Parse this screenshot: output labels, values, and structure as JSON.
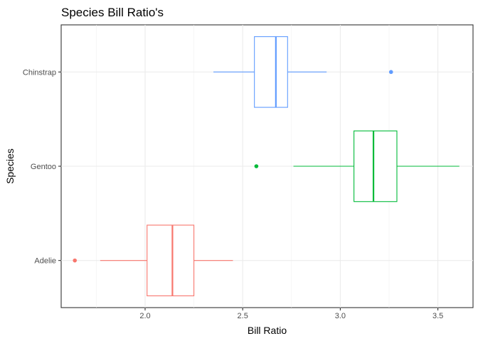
{
  "chart_data": {
    "type": "boxplot",
    "orientation": "horizontal",
    "title": "Species Bill Ratio's",
    "xlabel": "Bill Ratio",
    "ylabel": "Species",
    "xlim": [
      1.57,
      3.68
    ],
    "x_ticks": [
      2.0,
      2.5,
      3.0,
      3.5
    ],
    "x_tick_labels": [
      "2.0",
      "2.5",
      "3.0",
      "3.5"
    ],
    "categories": [
      "Adelie",
      "Gentoo",
      "Chinstrap"
    ],
    "grid": true,
    "legend": "none",
    "series": [
      {
        "name": "Adelie",
        "color": "#F8766D",
        "whisker_low": 1.77,
        "q1": 2.01,
        "median": 2.14,
        "q3": 2.25,
        "whisker_high": 2.45,
        "outliers": [
          1.64
        ]
      },
      {
        "name": "Gentoo",
        "color": "#00BA38",
        "whisker_low": 2.76,
        "q1": 3.07,
        "median": 3.17,
        "q3": 3.29,
        "whisker_high": 3.61,
        "outliers": [
          2.57
        ]
      },
      {
        "name": "Chinstrap",
        "color": "#619CFF",
        "whisker_low": 2.35,
        "q1": 2.56,
        "median": 2.67,
        "q3": 2.73,
        "whisker_high": 2.93,
        "outliers": [
          3.26
        ]
      }
    ]
  }
}
